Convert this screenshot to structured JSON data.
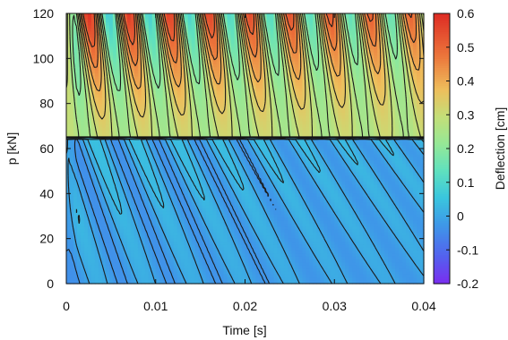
{
  "chart_data": {
    "type": "heatmap",
    "title": "",
    "xlabel": "Time [s]",
    "ylabel": "p [kN]",
    "colorbar_label": "Deflection [cm]",
    "xlim": [
      0,
      0.04
    ],
    "ylim": [
      0,
      120
    ],
    "clim": [
      -0.2,
      0.6
    ],
    "x_ticks": [
      0,
      0.01,
      0.02,
      0.03,
      0.04
    ],
    "x_tick_labels": [
      "0",
      "0.01",
      "0.02",
      "0.03",
      "0.04"
    ],
    "y_ticks": [
      0,
      20,
      40,
      60,
      80,
      100,
      120
    ],
    "y_tick_labels": [
      "0",
      "20",
      "40",
      "60",
      "80",
      "100",
      "120"
    ],
    "colorbar_ticks": [
      -0.2,
      -0.1,
      0,
      0.1,
      0.2,
      0.3,
      0.4,
      0.5,
      0.6
    ],
    "colorbar_tick_labels": [
      "-0.2",
      "-0.1",
      "0",
      "0.1",
      "0.2",
      "0.3",
      "0.4",
      "0.5",
      "0.6"
    ],
    "colormap": "rainbow (purple-blue-cyan-green-yellow-orange-red)",
    "contours": true,
    "regions": [
      {
        "description": "upper region",
        "p_range": [
          65,
          120
        ],
        "deflection_range": [
          0.2,
          0.55
        ]
      },
      {
        "description": "lower region",
        "p_range": [
          0,
          65
        ],
        "deflection_range": [
          -0.1,
          0.1
        ]
      }
    ],
    "transition_p": 65,
    "upper_peaks_time": [
      0.0025,
      0.007,
      0.0115,
      0.016,
      0.0205,
      0.025,
      0.0295,
      0.034,
      0.0385
    ],
    "upper_peak_deflection_max": 0.55,
    "lower_valley_deflection_min": -0.08
  }
}
